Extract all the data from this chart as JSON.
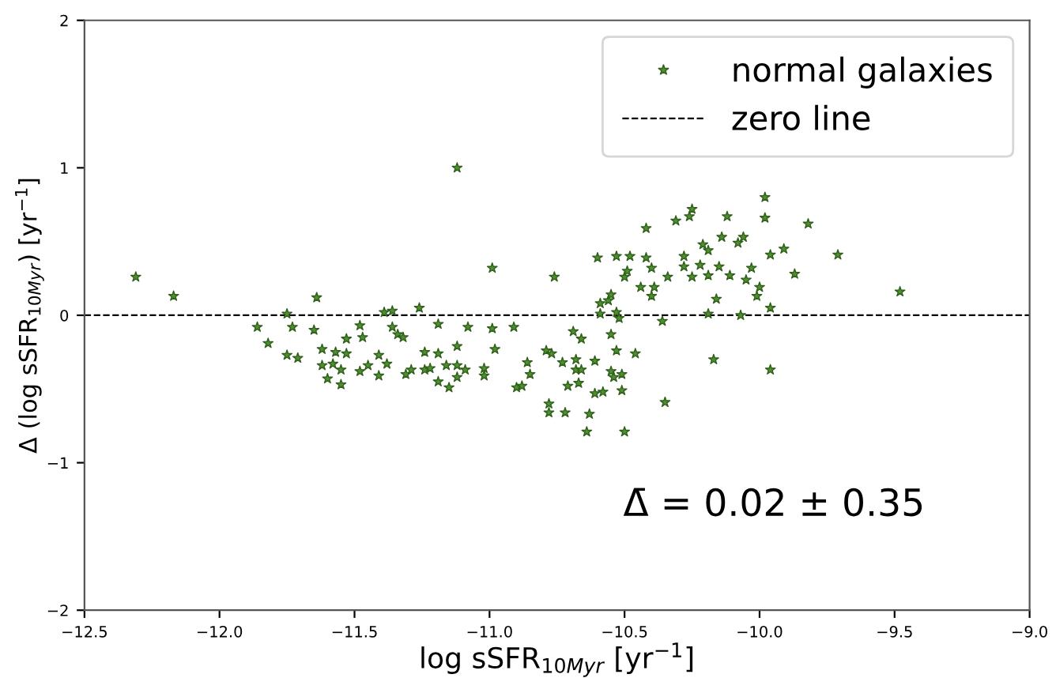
{
  "chart_data": {
    "type": "scatter",
    "xlabel": "log sSFR$_{10Myr}$ [yr$^{−1}$]",
    "ylabel": "Δ (log sSFR$_{10Myr}$) [yr$^{−1}$]",
    "series": [
      {
        "name": "normal galaxies",
        "color": "#4f8f2f",
        "marker": "star",
        "x": [
          -12.31,
          -12.17,
          -11.12,
          -11.86,
          -11.82,
          -11.75,
          -11.73,
          -11.75,
          -11.71,
          -11.64,
          -11.65,
          -11.62,
          -11.62,
          -11.6,
          -11.58,
          -11.57,
          -11.55,
          -11.55,
          -11.53,
          -11.53,
          -11.48,
          -11.47,
          -11.48,
          -11.45,
          -11.41,
          -11.41,
          -11.39,
          -11.36,
          -11.36,
          -11.34,
          -11.32,
          -11.38,
          -11.31,
          -11.29,
          -11.26,
          -11.24,
          -11.24,
          -11.22,
          -11.19,
          -11.19,
          -11.19,
          -11.16,
          -11.15,
          -11.12,
          -11.12,
          -11.12,
          -11.09,
          -11.08,
          -11.02,
          -11.02,
          -10.99,
          -10.99,
          -10.98,
          -10.91,
          -10.9,
          -10.88,
          -10.86,
          -10.85,
          -10.79,
          -10.78,
          -10.78,
          -10.77,
          -10.76,
          -10.73,
          -10.72,
          -10.71,
          -10.69,
          -10.68,
          -10.68,
          -10.67,
          -10.66,
          -10.66,
          -10.64,
          -10.63,
          -10.61,
          -10.61,
          -10.6,
          -10.59,
          -10.59,
          -10.58,
          -10.56,
          -10.55,
          -10.55,
          -10.55,
          -10.54,
          -10.53,
          -10.53,
          -10.53,
          -10.52,
          -10.51,
          -10.51,
          -10.5,
          -10.5,
          -10.49,
          -10.48,
          -10.46,
          -10.44,
          -10.42,
          -10.42,
          -10.4,
          -10.4,
          -10.39,
          -10.36,
          -10.35,
          -10.34,
          -10.31,
          -10.28,
          -10.28,
          -10.26,
          -10.25,
          -10.25,
          -10.22,
          -10.21,
          -10.19,
          -10.19,
          -10.19,
          -10.17,
          -10.16,
          -10.15,
          -10.14,
          -10.12,
          -10.11,
          -10.08,
          -10.07,
          -10.06,
          -10.05,
          -10.03,
          -10.01,
          -10.0,
          -9.98,
          -9.98,
          -9.96,
          -9.96,
          -9.96,
          -9.91,
          -9.87,
          -9.82,
          -9.71,
          -9.48
        ],
        "values": [
          0.26,
          0.13,
          1.0,
          -0.08,
          -0.19,
          0.01,
          -0.08,
          -0.27,
          -0.29,
          0.12,
          -0.1,
          -0.23,
          -0.34,
          -0.43,
          -0.33,
          -0.25,
          -0.47,
          -0.37,
          -0.26,
          -0.16,
          -0.07,
          -0.15,
          -0.38,
          -0.34,
          -0.27,
          -0.41,
          0.02,
          0.03,
          -0.08,
          -0.13,
          -0.15,
          -0.33,
          -0.4,
          -0.37,
          0.05,
          -0.25,
          -0.37,
          -0.36,
          -0.06,
          -0.26,
          -0.45,
          -0.34,
          -0.49,
          -0.21,
          -0.34,
          -0.42,
          -0.37,
          -0.08,
          -0.36,
          -0.41,
          0.32,
          -0.09,
          -0.23,
          -0.08,
          -0.49,
          -0.48,
          -0.32,
          -0.4,
          -0.24,
          -0.6,
          -0.66,
          -0.26,
          0.26,
          -0.32,
          -0.66,
          -0.48,
          -0.11,
          -0.37,
          -0.3,
          -0.46,
          -0.16,
          -0.37,
          -0.79,
          -0.67,
          -0.53,
          -0.31,
          0.39,
          0.08,
          0.01,
          -0.52,
          0.1,
          0.14,
          -0.13,
          -0.38,
          -0.42,
          0.4,
          0.02,
          -0.24,
          -0.02,
          -0.4,
          -0.51,
          -0.79,
          0.26,
          0.3,
          0.4,
          -0.26,
          0.19,
          0.59,
          0.39,
          0.13,
          0.32,
          0.19,
          -0.04,
          -0.59,
          0.26,
          0.64,
          0.33,
          0.4,
          0.67,
          0.72,
          0.26,
          0.34,
          0.48,
          0.44,
          0.01,
          0.27,
          -0.3,
          0.11,
          0.33,
          0.53,
          0.67,
          0.27,
          0.49,
          0.0,
          0.53,
          0.24,
          0.32,
          0.13,
          0.19,
          0.8,
          0.66,
          0.05,
          -0.37,
          0.41,
          0.45,
          0.28,
          0.62,
          0.41,
          0.16
        ]
      }
    ],
    "ref_lines": [
      {
        "axis": "y",
        "value": 0,
        "label": "zero line",
        "color": "#000000",
        "line_style": "dashed"
      }
    ],
    "annotations": [
      "Δ̄ = 0.02 ± 0.35"
    ],
    "xlim": [
      -12.5,
      -9.0
    ],
    "xticks": [
      {
        "value": -12.5,
        "label": "−12.5"
      },
      {
        "value": -12.0,
        "label": "−12.0"
      },
      {
        "value": -11.5,
        "label": "−11.5"
      },
      {
        "value": -11.0,
        "label": "−11.0"
      },
      {
        "value": -10.5,
        "label": "−10.5"
      },
      {
        "value": -10.0,
        "label": "−10.0"
      },
      {
        "value": -9.5,
        "label": "−9.5"
      },
      {
        "value": -9.0,
        "label": "−9.0"
      }
    ],
    "ylim": [
      -2,
      2
    ],
    "yticks": [
      {
        "value": -2,
        "label": "−2"
      },
      {
        "value": -1,
        "label": "−1"
      },
      0,
      1,
      2
    ],
    "legend": "top right",
    "grid": false
  }
}
